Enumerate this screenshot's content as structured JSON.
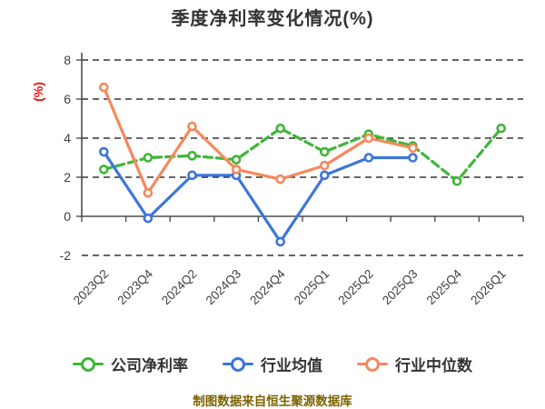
{
  "title": "季度净利率变化情况(%)",
  "y_axis_unit": "(%)",
  "footer_text": "制图数据来自恒生聚源数据库",
  "colors": {
    "background": "#ffffff",
    "title_text": "#333333",
    "axis": "#4d4d4d",
    "gridline": "#333333",
    "tick_label": "#3d3d3d",
    "y_unit_label": "#ee1111",
    "footer_text": "#7b6200",
    "legend_text": "#333333",
    "marker_fill": "#ffffff"
  },
  "chart_data": {
    "type": "line",
    "title": "季度净利率变化情况(%)",
    "categories": [
      "2023Q2",
      "2023Q4",
      "2024Q2",
      "2024Q3",
      "2024Q4",
      "2025Q1",
      "2025Q2",
      "2025Q3",
      "2025Q4",
      "2026Q1"
    ],
    "x_tick_rotation_deg": 45,
    "yticks": [
      8,
      6,
      4,
      2,
      0,
      -2
    ],
    "ylim": [
      -2,
      8
    ],
    "grid": "horizontal-dashed",
    "legend_position": "bottom",
    "x_axis_at_zero": true,
    "series": [
      {
        "name": "公司净利率",
        "color": "#3fb53a",
        "line_style": "dashed",
        "marker": "circle-white-fill",
        "values": [
          2.4,
          3.0,
          3.1,
          2.9,
          4.5,
          3.3,
          4.2,
          3.6,
          1.8,
          4.5
        ]
      },
      {
        "name": "行业均值",
        "color": "#3d76db",
        "line_style": "solid",
        "marker": "circle-white-fill",
        "values": [
          3.3,
          -0.1,
          2.1,
          2.1,
          -1.3,
          2.1,
          3.0,
          3.0,
          null,
          null
        ]
      },
      {
        "name": "行业中位数",
        "color": "#f5895c",
        "line_style": "solid",
        "marker": "circle-white-fill",
        "values": [
          6.6,
          1.2,
          4.6,
          2.4,
          1.9,
          2.6,
          4.0,
          3.5,
          null,
          null
        ]
      }
    ]
  }
}
